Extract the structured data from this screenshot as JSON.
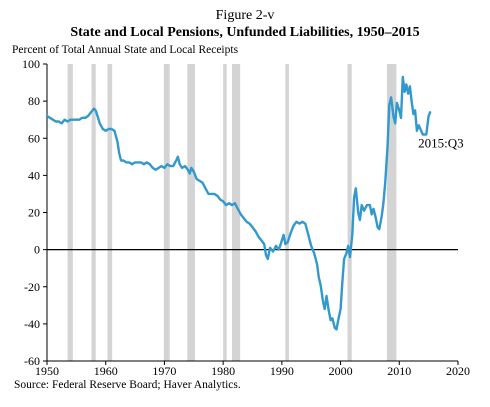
{
  "figure_label": "Figure 2-v",
  "source": "Source: Federal Reserve Board; Haver Analytics.",
  "chart_data": {
    "type": "line",
    "title": "State and Local Pensions, Unfunded Liabilities, 1950–2015",
    "ylabel": "Percent of Total Annual State and Local Receipts",
    "xlabel": "",
    "xlim": [
      1950,
      2020
    ],
    "ylim": [
      -60,
      100
    ],
    "xticks": [
      1950,
      1960,
      1970,
      1980,
      1990,
      2000,
      2010,
      2020
    ],
    "yticks": [
      100,
      80,
      60,
      40,
      20,
      0,
      -20,
      -40,
      -60
    ],
    "line_color": "#3399cc",
    "recession_color": "#d4d4d4",
    "zero_line": true,
    "grid": false,
    "recessions": [
      [
        1953.5,
        1954.4
      ],
      [
        1957.6,
        1958.3
      ],
      [
        1960.3,
        1961.1
      ],
      [
        1969.9,
        1970.9
      ],
      [
        1973.9,
        1975.2
      ],
      [
        1980.0,
        1980.6
      ],
      [
        1981.5,
        1982.9
      ],
      [
        1990.6,
        1991.2
      ],
      [
        2001.2,
        2001.9
      ],
      [
        2007.9,
        2009.5
      ]
    ],
    "annotation": {
      "text": "2015:Q3",
      "x": 2015.6,
      "y": 55
    },
    "series": [
      {
        "values": [
          [
            1950.0,
            72
          ],
          [
            1950.5,
            71
          ],
          [
            1951.0,
            70
          ],
          [
            1951.5,
            69
          ],
          [
            1952.0,
            69
          ],
          [
            1952.5,
            68
          ],
          [
            1953.0,
            70
          ],
          [
            1953.5,
            69
          ],
          [
            1954.0,
            70
          ],
          [
            1954.5,
            70
          ],
          [
            1955.0,
            70
          ],
          [
            1955.5,
            70
          ],
          [
            1956.0,
            71
          ],
          [
            1956.5,
            71
          ],
          [
            1957.0,
            72
          ],
          [
            1957.5,
            74
          ],
          [
            1958.0,
            76
          ],
          [
            1958.3,
            75
          ],
          [
            1958.6,
            72
          ],
          [
            1959.0,
            68
          ],
          [
            1959.5,
            65
          ],
          [
            1960.0,
            64
          ],
          [
            1960.5,
            65
          ],
          [
            1961.0,
            65
          ],
          [
            1961.5,
            64
          ],
          [
            1962.0,
            58
          ],
          [
            1962.3,
            52
          ],
          [
            1962.6,
            48
          ],
          [
            1963.0,
            48
          ],
          [
            1963.5,
            47
          ],
          [
            1964.0,
            47
          ],
          [
            1964.5,
            46
          ],
          [
            1965.0,
            47
          ],
          [
            1965.5,
            47
          ],
          [
            1966.0,
            47
          ],
          [
            1966.5,
            46
          ],
          [
            1967.0,
            47
          ],
          [
            1967.5,
            46
          ],
          [
            1968.0,
            44
          ],
          [
            1968.5,
            43
          ],
          [
            1969.0,
            44
          ],
          [
            1969.5,
            45
          ],
          [
            1970.0,
            44
          ],
          [
            1970.5,
            46
          ],
          [
            1971.0,
            45
          ],
          [
            1971.5,
            45
          ],
          [
            1972.0,
            48
          ],
          [
            1972.3,
            50
          ],
          [
            1972.6,
            46
          ],
          [
            1973.0,
            44
          ],
          [
            1973.5,
            45
          ],
          [
            1974.0,
            43
          ],
          [
            1974.3,
            41
          ],
          [
            1974.6,
            44
          ],
          [
            1975.0,
            42
          ],
          [
            1975.5,
            38
          ],
          [
            1976.0,
            37
          ],
          [
            1976.5,
            36
          ],
          [
            1977.0,
            33
          ],
          [
            1977.5,
            30
          ],
          [
            1978.0,
            30
          ],
          [
            1978.5,
            30
          ],
          [
            1979.0,
            29
          ],
          [
            1979.5,
            27
          ],
          [
            1980.0,
            26
          ],
          [
            1980.5,
            24
          ],
          [
            1981.0,
            25
          ],
          [
            1981.5,
            24
          ],
          [
            1982.0,
            25
          ],
          [
            1982.5,
            22
          ],
          [
            1983.0,
            19
          ],
          [
            1983.5,
            17
          ],
          [
            1984.0,
            15
          ],
          [
            1984.5,
            14
          ],
          [
            1985.0,
            12
          ],
          [
            1985.5,
            10
          ],
          [
            1986.0,
            7
          ],
          [
            1986.5,
            5
          ],
          [
            1987.0,
            3
          ],
          [
            1987.3,
            -3
          ],
          [
            1987.6,
            -5
          ],
          [
            1988.0,
            1
          ],
          [
            1988.5,
            -1
          ],
          [
            1989.0,
            2
          ],
          [
            1989.5,
            0
          ],
          [
            1990.0,
            5
          ],
          [
            1990.3,
            8
          ],
          [
            1990.6,
            3
          ],
          [
            1991.0,
            4
          ],
          [
            1991.5,
            9
          ],
          [
            1992.0,
            13
          ],
          [
            1992.5,
            15
          ],
          [
            1993.0,
            14
          ],
          [
            1993.5,
            15
          ],
          [
            1994.0,
            14
          ],
          [
            1994.5,
            8
          ],
          [
            1995.0,
            2
          ],
          [
            1995.5,
            -2
          ],
          [
            1996.0,
            -8
          ],
          [
            1996.3,
            -15
          ],
          [
            1996.6,
            -19
          ],
          [
            1997.0,
            -28
          ],
          [
            1997.3,
            -32
          ],
          [
            1997.6,
            -25
          ],
          [
            1998.0,
            -33
          ],
          [
            1998.3,
            -38
          ],
          [
            1998.6,
            -37
          ],
          [
            1999.0,
            -42
          ],
          [
            1999.3,
            -43
          ],
          [
            1999.6,
            -38
          ],
          [
            2000.0,
            -32
          ],
          [
            2000.3,
            -18
          ],
          [
            2000.6,
            -5
          ],
          [
            2001.0,
            -2
          ],
          [
            2001.3,
            2
          ],
          [
            2001.6,
            -4
          ],
          [
            2002.0,
            8
          ],
          [
            2002.3,
            28
          ],
          [
            2002.6,
            33
          ],
          [
            2003.0,
            20
          ],
          [
            2003.3,
            16
          ],
          [
            2003.6,
            24
          ],
          [
            2004.0,
            21
          ],
          [
            2004.5,
            24
          ],
          [
            2005.0,
            24
          ],
          [
            2005.3,
            19
          ],
          [
            2005.6,
            22
          ],
          [
            2006.0,
            17
          ],
          [
            2006.3,
            12
          ],
          [
            2006.6,
            11
          ],
          [
            2007.0,
            18
          ],
          [
            2007.3,
            25
          ],
          [
            2007.6,
            36
          ],
          [
            2008.0,
            55
          ],
          [
            2008.3,
            78
          ],
          [
            2008.6,
            82
          ],
          [
            2009.0,
            72
          ],
          [
            2009.3,
            68
          ],
          [
            2009.6,
            79
          ],
          [
            2010.0,
            75
          ],
          [
            2010.3,
            71
          ],
          [
            2010.6,
            93
          ],
          [
            2010.9,
            85
          ],
          [
            2011.2,
            89
          ],
          [
            2011.5,
            84
          ],
          [
            2011.8,
            88
          ],
          [
            2012.1,
            80
          ],
          [
            2012.4,
            73
          ],
          [
            2012.7,
            75
          ],
          [
            2013.0,
            64
          ],
          [
            2013.3,
            67
          ],
          [
            2013.6,
            65
          ],
          [
            2014.0,
            62
          ],
          [
            2014.3,
            62
          ],
          [
            2014.6,
            62
          ],
          [
            2015.0,
            72
          ],
          [
            2015.25,
            74
          ]
        ]
      }
    ]
  }
}
